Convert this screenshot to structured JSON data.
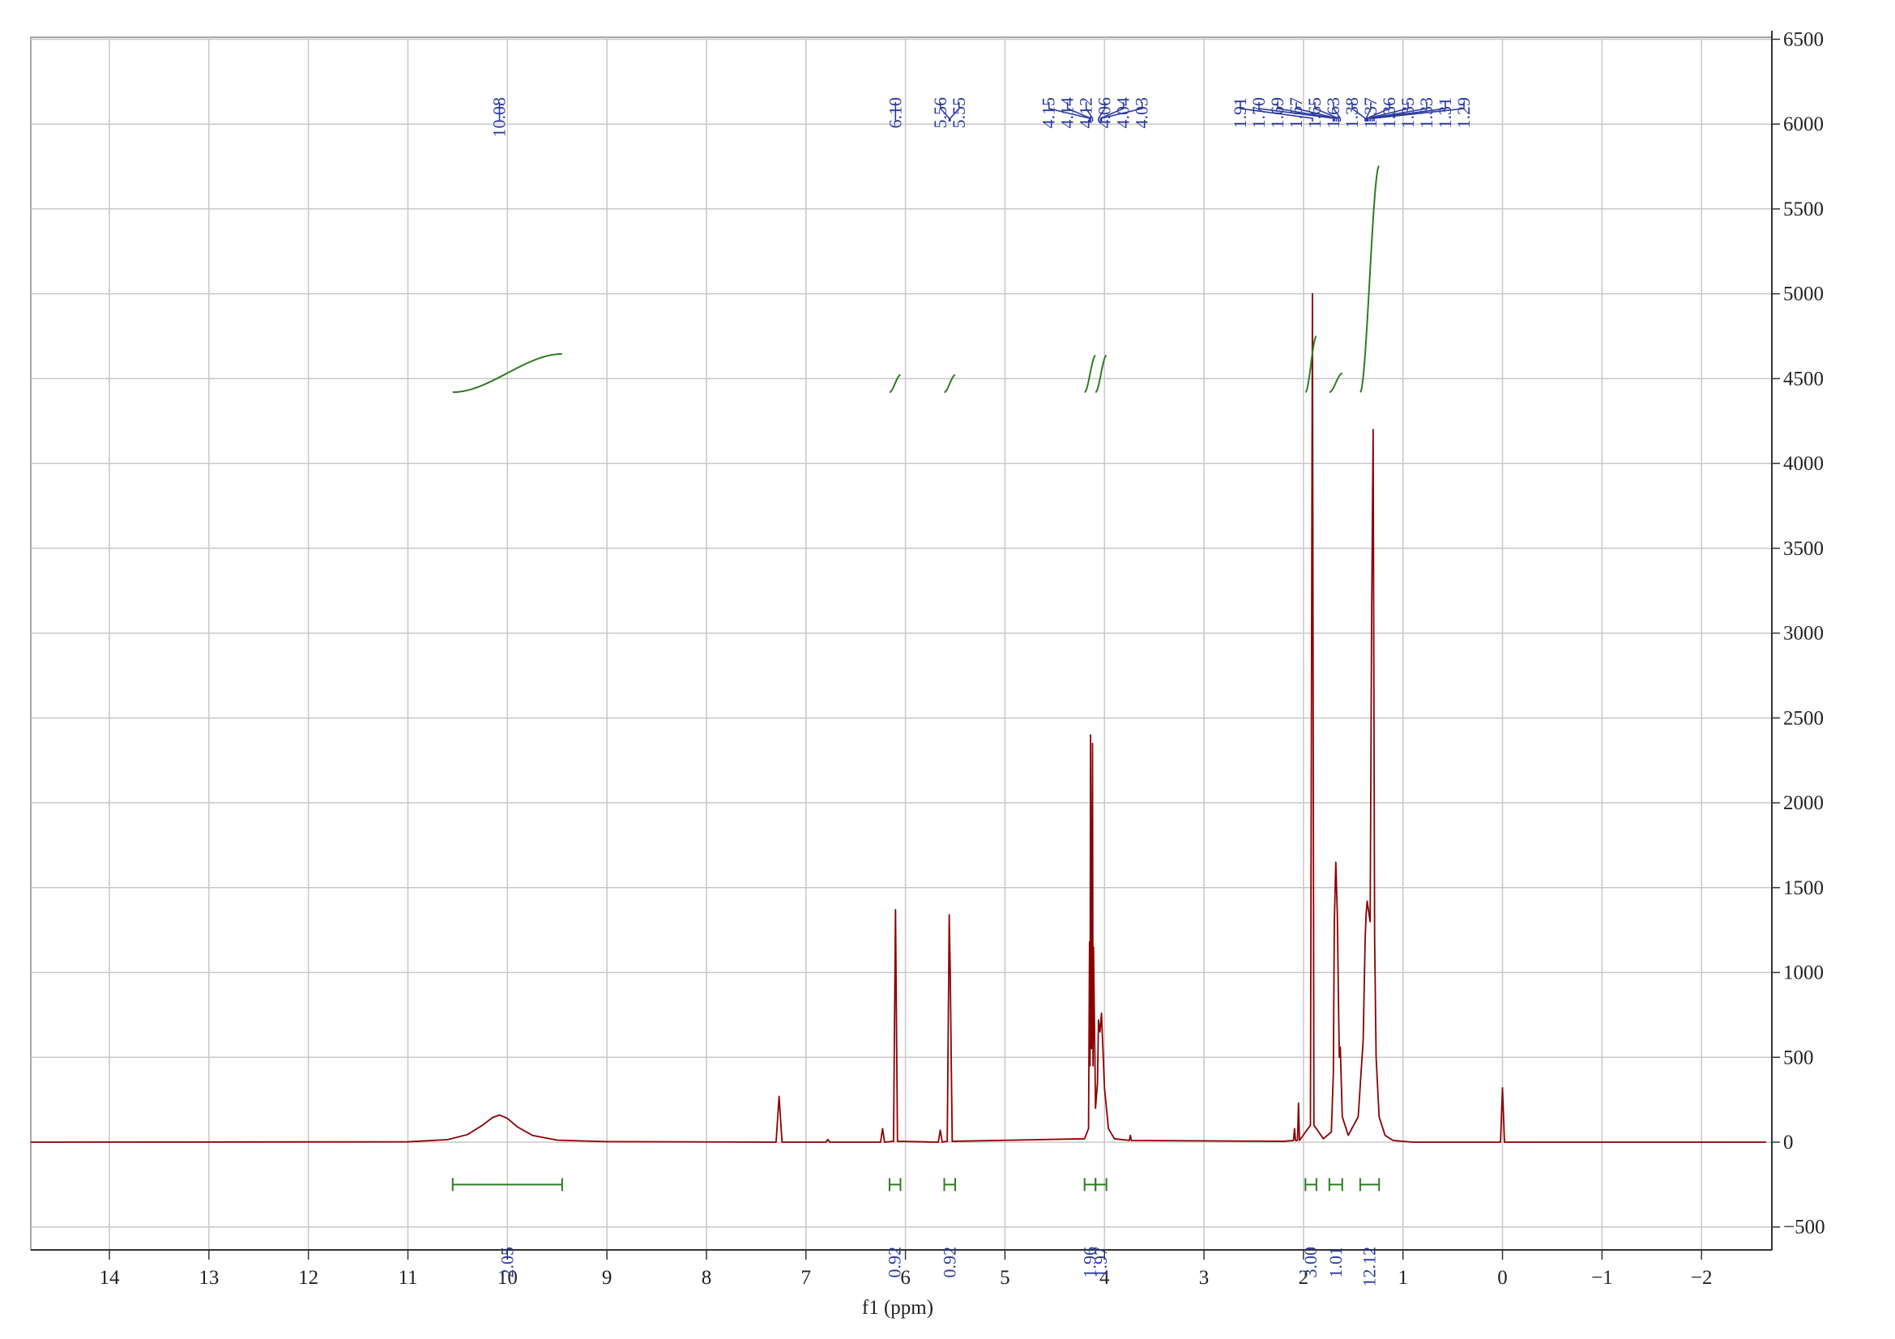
{
  "chart_data": {
    "type": "line",
    "x_label": "f1 (ppm)",
    "xlim": [
      14.79,
      -2.65
    ],
    "ylim": [
      -635,
      6550
    ],
    "xticks": [
      14,
      13,
      12,
      11,
      10,
      9,
      8,
      7,
      6,
      5,
      4,
      3,
      2,
      1,
      0,
      {
        "value": -1,
        "label": "−1"
      },
      {
        "value": -2,
        "label": "−2"
      }
    ],
    "yticks": [
      {
        "value": -500,
        "label": "−500"
      },
      0,
      500,
      1000,
      1500,
      2000,
      2500,
      3000,
      3500,
      4000,
      4500,
      5000,
      5500,
      6000,
      6500
    ],
    "grid": true,
    "x": [
      14.79,
      11,
      10.6,
      10.4,
      10.25,
      10.15,
      10.08,
      10.0,
      9.9,
      9.75,
      9.5,
      9.0,
      7.3,
      7.27,
      7.24,
      6.8,
      6.78,
      6.76,
      6.25,
      6.23,
      6.21,
      6.12,
      6.1,
      6.08,
      5.67,
      5.65,
      5.63,
      5.58,
      5.56,
      5.55,
      5.53,
      4.2,
      4.16,
      4.15,
      4.145,
      4.14,
      4.13,
      4.12,
      4.115,
      4.11,
      4.09,
      4.07,
      4.06,
      4.045,
      4.03,
      4.0,
      3.96,
      3.9,
      3.75,
      3.74,
      3.73,
      2.2,
      2.1,
      2.09,
      2.08,
      2.06,
      2.05,
      2.04,
      1.93,
      1.91,
      1.895,
      1.8,
      1.72,
      1.7,
      1.69,
      1.675,
      1.66,
      1.65,
      1.64,
      1.63,
      1.61,
      1.55,
      1.45,
      1.4,
      1.38,
      1.37,
      1.36,
      1.35,
      1.33,
      1.315,
      1.3,
      1.285,
      1.27,
      1.24,
      1.18,
      1.1,
      0.9,
      0.02,
      0.0,
      -0.02,
      -2.65
    ],
    "series": [
      {
        "color": "#8b0000",
        "values": [
          0,
          2,
          15,
          45,
          100,
          145,
          160,
          140,
          90,
          40,
          12,
          3,
          0,
          270,
          0,
          0,
          15,
          0,
          0,
          80,
          0,
          5,
          1370,
          5,
          0,
          70,
          0,
          5,
          1340,
          1000,
          5,
          20,
          80,
          1180,
          450,
          2400,
          550,
          2350,
          450,
          1150,
          200,
          350,
          720,
          650,
          760,
          320,
          80,
          20,
          10,
          40,
          10,
          5,
          10,
          80,
          10,
          10,
          230,
          10,
          100,
          5000,
          100,
          20,
          60,
          400,
          1300,
          1650,
          1350,
          900,
          500,
          560,
          150,
          40,
          150,
          600,
          1200,
          1350,
          1420,
          1380,
          1300,
          3100,
          4200,
          1200,
          500,
          150,
          40,
          10,
          0,
          0,
          320,
          0,
          0
        ]
      }
    ],
    "peak_labels": [
      {
        "value": 10.08,
        "label": "10.08"
      },
      {
        "value": 6.1,
        "label": "6.10"
      },
      {
        "value": 5.56,
        "label": "5.56"
      },
      {
        "value": 5.55,
        "label": "5.55"
      },
      {
        "value": 4.15,
        "label": "4.15"
      },
      {
        "value": 4.14,
        "label": "4.14"
      },
      {
        "value": 4.12,
        "label": "4.12"
      },
      {
        "value": 4.06,
        "label": "4.06"
      },
      {
        "value": 4.04,
        "label": "4.04"
      },
      {
        "value": 4.03,
        "label": "4.03"
      },
      {
        "value": 1.91,
        "label": "1.91"
      },
      {
        "value": 1.7,
        "label": "1.70"
      },
      {
        "value": 1.69,
        "label": "1.69"
      },
      {
        "value": 1.67,
        "label": "1.67"
      },
      {
        "value": 1.65,
        "label": "1.65"
      },
      {
        "value": 1.63,
        "label": "1.63"
      },
      {
        "value": 1.38,
        "label": "1.38"
      },
      {
        "value": 1.37,
        "label": "1.37"
      },
      {
        "value": 1.36,
        "label": "1.36"
      },
      {
        "value": 1.35,
        "label": "1.35"
      },
      {
        "value": 1.33,
        "label": "1.33"
      },
      {
        "value": 1.31,
        "label": "1.31"
      },
      {
        "value": 1.29,
        "label": "1.29"
      }
    ],
    "integrals": {
      "color": "#2e7d22",
      "ranges": [
        [
          10.55,
          9.45
        ],
        [
          6.16,
          6.05
        ],
        [
          5.61,
          5.5
        ],
        [
          4.2,
          4.09
        ],
        [
          4.09,
          3.98
        ],
        [
          1.98,
          1.87
        ],
        [
          1.74,
          1.61
        ],
        [
          1.43,
          1.24
        ]
      ],
      "values": [
        2.05,
        0.92,
        0.92,
        1.96,
        1.97,
        3.0,
        1.01,
        12.12
      ],
      "value_labels": [
        "2.05",
        "0.92",
        "0.92",
        "1.96",
        "1.97",
        "3.00",
        "1.01",
        "12.12"
      ]
    }
  }
}
